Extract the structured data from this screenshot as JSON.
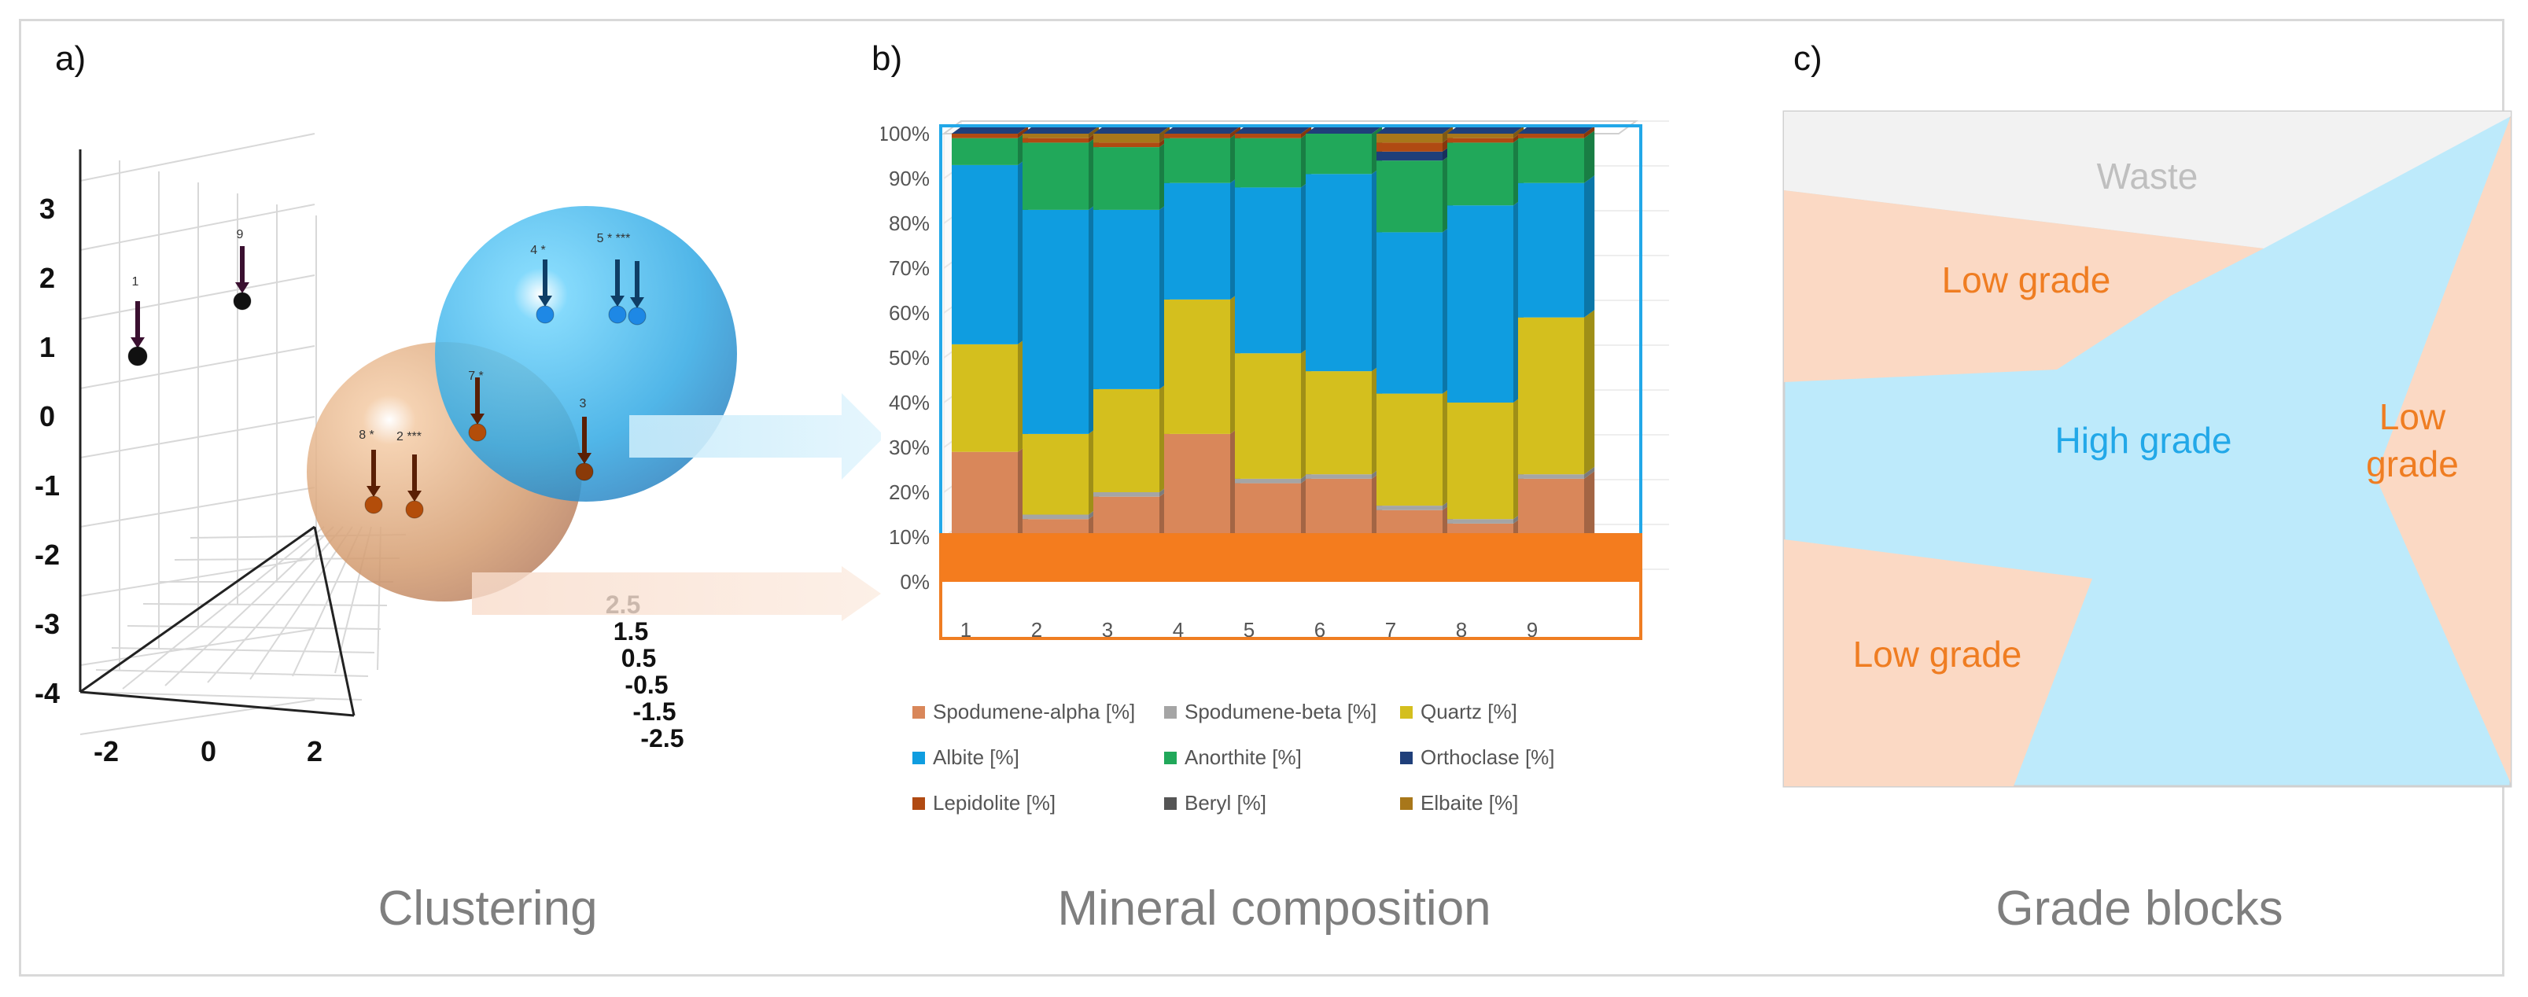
{
  "panels": {
    "a": {
      "label": "a)",
      "caption": "Clustering"
    },
    "b": {
      "label": "b)",
      "caption": "Mineral composition"
    },
    "c": {
      "label": "c)",
      "caption": "Grade blocks"
    }
  },
  "clustering": {
    "z_ticks": [
      "3",
      "2",
      "1",
      "0",
      "-1",
      "-2",
      "-3",
      "-4"
    ],
    "x_ticks": [
      "-2",
      "0",
      "2"
    ],
    "y_ticks": [
      "2.5",
      "1.5",
      "0.5",
      "-0.5",
      "-1.5",
      "-2.5"
    ],
    "y_axis_text": "",
    "points": [
      {
        "id": "1",
        "label": "1",
        "color": "#111111"
      },
      {
        "id": "9",
        "label": "9",
        "color": "#111111"
      },
      {
        "id": "4",
        "label": "4 *",
        "color": "#1e88e5"
      },
      {
        "id": "5",
        "label": "5 * ***",
        "color": "#1e88e5"
      },
      {
        "id": "5b",
        "label": "",
        "color": "#1e88e5"
      },
      {
        "id": "7",
        "label": "7 *",
        "color": "#b34d0a"
      },
      {
        "id": "3",
        "label": "3",
        "color": "#8a3a08"
      },
      {
        "id": "8",
        "label": "8 *",
        "color": "#b34d0a"
      },
      {
        "id": "2",
        "label": "2 ***",
        "color": "#b34d0a"
      }
    ],
    "clusters": [
      {
        "name": "high-grade-cluster",
        "color": "#4ab8f0"
      },
      {
        "name": "low-grade-cluster",
        "color": "#e0a070"
      }
    ]
  },
  "chart_data": {
    "type": "bar",
    "stacked": true,
    "title": "",
    "xlabel": "",
    "ylabel": "",
    "ylim": [
      0,
      100
    ],
    "y_ticks": [
      "0%",
      "10%",
      "20%",
      "30%",
      "40%",
      "50%",
      "60%",
      "70%",
      "80%",
      "90%",
      "100%"
    ],
    "categories": [
      "1",
      "2",
      "3",
      "4",
      "5",
      "6",
      "7",
      "8",
      "9"
    ],
    "series": [
      {
        "name": "Spodumene-alpha [%]",
        "color": "#d9875a",
        "values": [
          29,
          14,
          19,
          33,
          22,
          23,
          16,
          13,
          23
        ]
      },
      {
        "name": "Spodumene-beta [%]",
        "color": "#a5a5a5",
        "values": [
          0,
          1,
          1,
          0,
          1,
          1,
          1,
          1,
          1
        ]
      },
      {
        "name": "Quartz [%]",
        "color": "#d4bf1e",
        "values": [
          24,
          18,
          23,
          30,
          28,
          23,
          25,
          26,
          35
        ]
      },
      {
        "name": "Albite [%]",
        "color": "#0f9de0",
        "values": [
          40,
          50,
          40,
          26,
          37,
          44,
          36,
          44,
          30
        ]
      },
      {
        "name": "Anorthite [%]",
        "color": "#21a85a",
        "values": [
          6,
          15,
          14,
          10,
          11,
          9,
          16,
          14,
          10
        ]
      },
      {
        "name": "Orthoclase [%]",
        "color": "#1f3f7a",
        "values": [
          0,
          0,
          0,
          0,
          0,
          0,
          2,
          0,
          0
        ]
      },
      {
        "name": "Lepidolite [%]",
        "color": "#b04a12",
        "values": [
          1,
          1,
          1,
          1,
          1,
          0,
          2,
          1,
          1
        ]
      },
      {
        "name": "Beryl [%]",
        "color": "#555555",
        "values": [
          0,
          0,
          0,
          0,
          0,
          0,
          0,
          0,
          0
        ]
      },
      {
        "name": "Elbaite [%]",
        "color": "#a8771a",
        "values": [
          0,
          1,
          2,
          0,
          0,
          0,
          2,
          1,
          0
        ]
      }
    ]
  },
  "grade_blocks": {
    "waste": "Waste",
    "low_grade_top": "Low grade",
    "high_grade": "High grade",
    "low_grade_right_1": "Low",
    "low_grade_right_2": "grade",
    "low_grade_bottom": "Low grade",
    "colors": {
      "waste": "#f2f2f2",
      "low": "#fbd9c4",
      "high": "#bdeafb",
      "low_text": "#ef7d22",
      "high_text": "#22a8e8",
      "waste_text": "#bfbfbf"
    }
  }
}
